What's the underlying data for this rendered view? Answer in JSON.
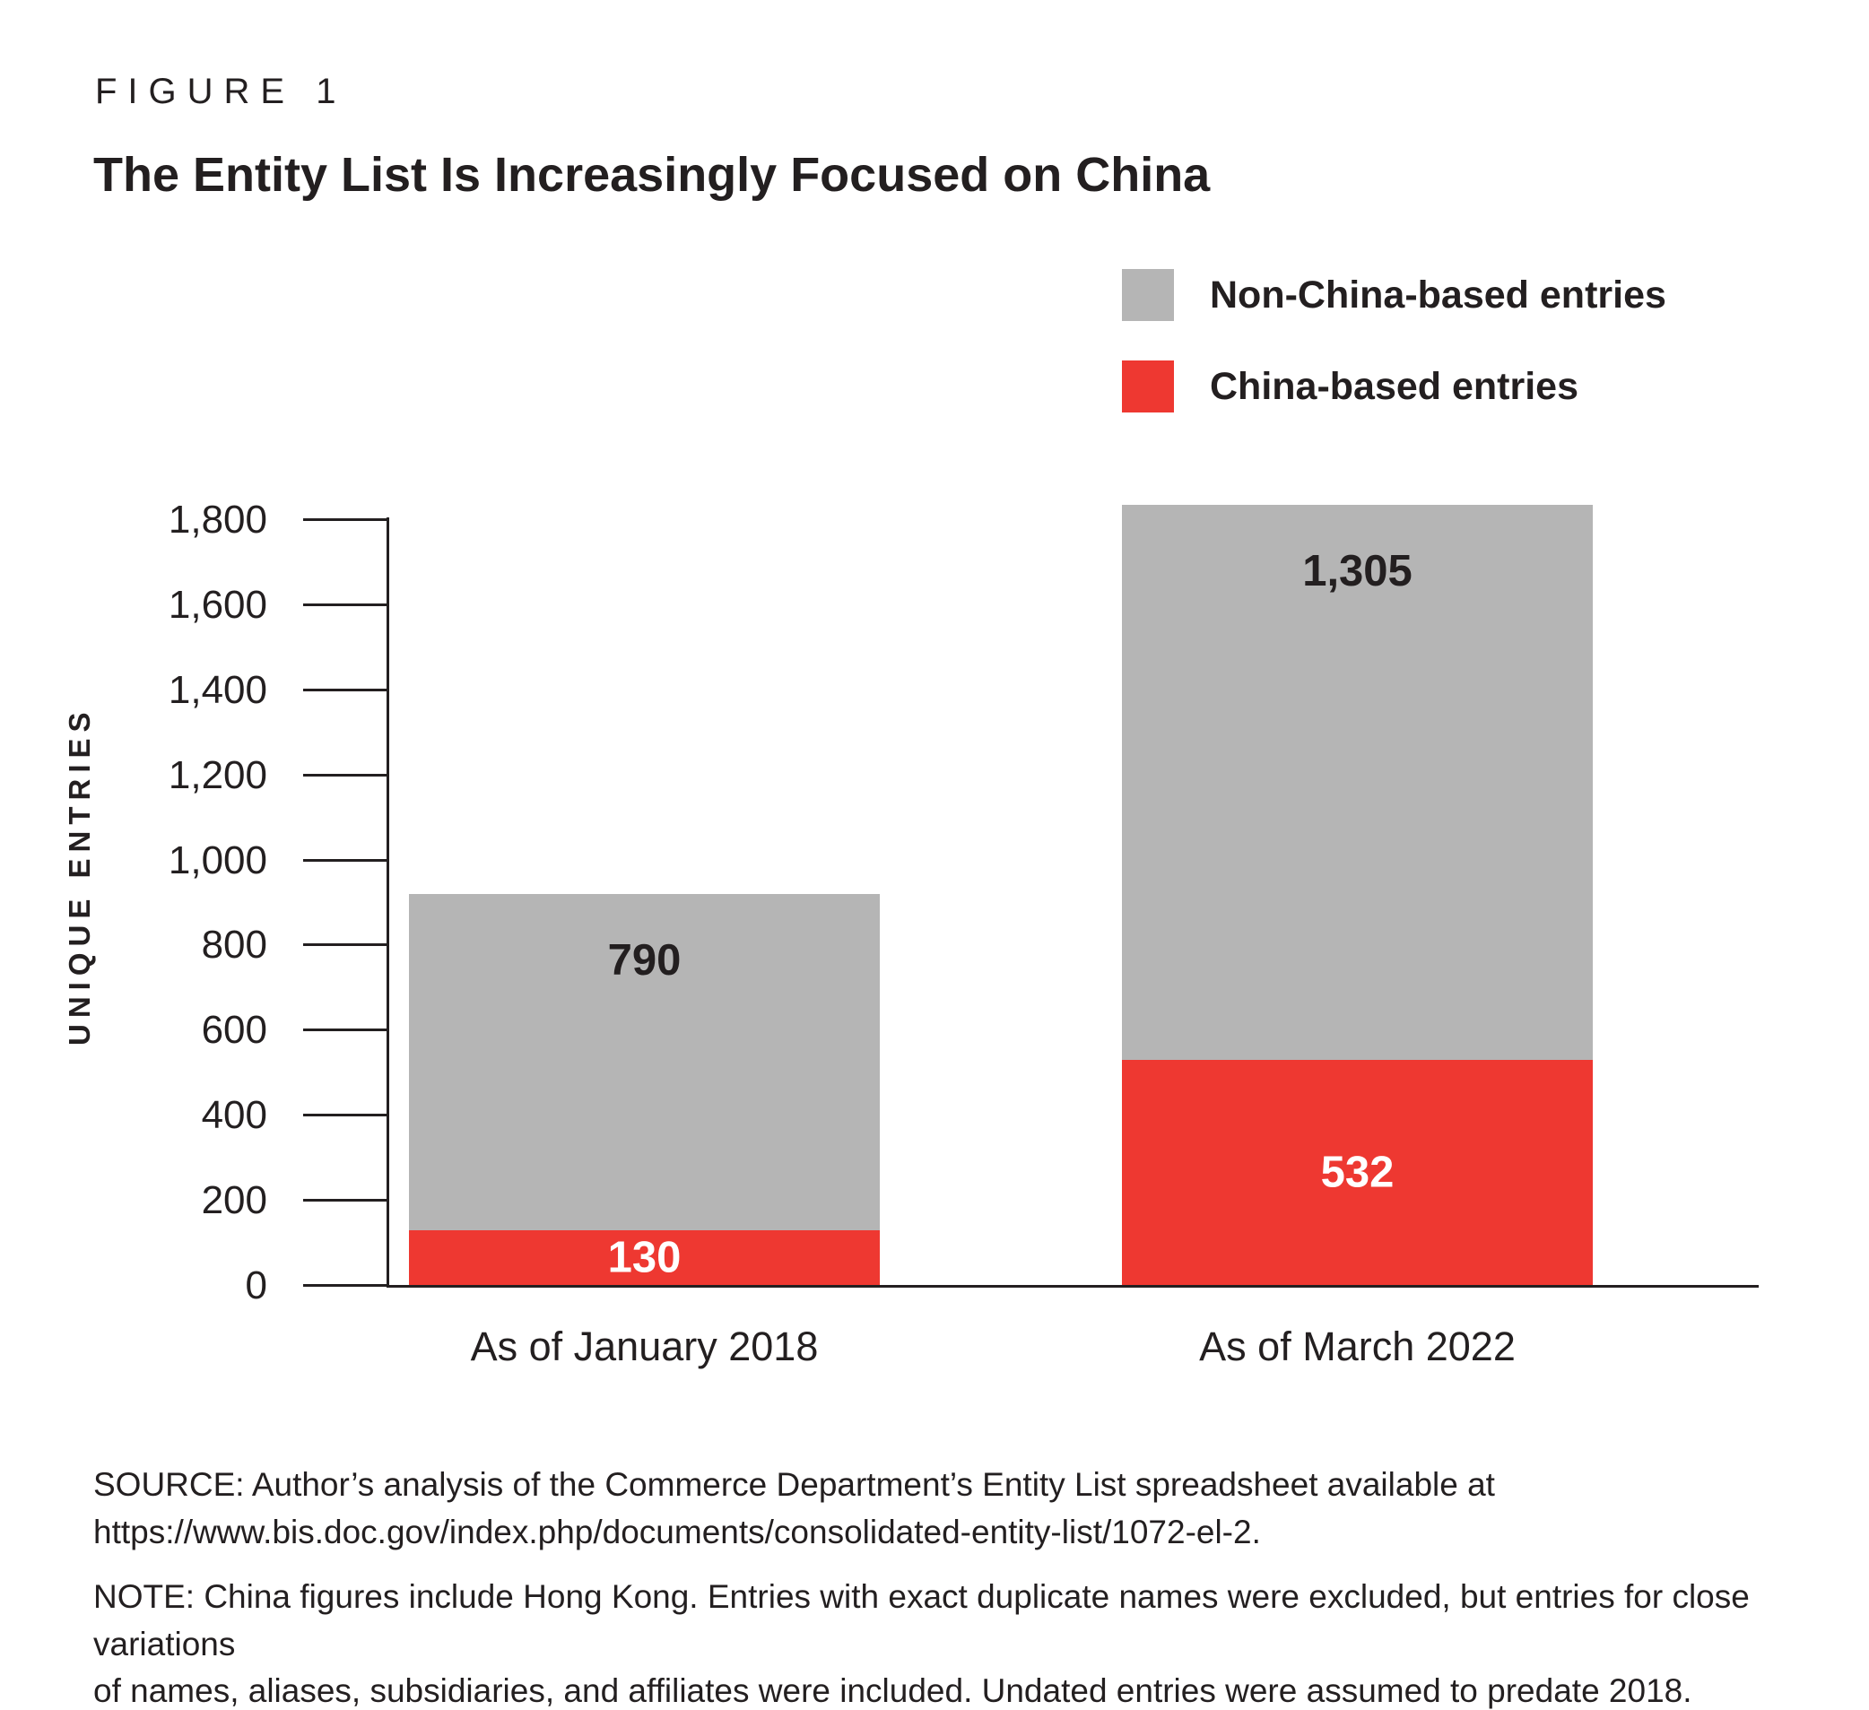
{
  "figure": {
    "eyebrow": "FIGURE 1",
    "title": "The Entity List Is Increasingly Focused on China"
  },
  "legend": {
    "items": [
      {
        "label": "Non-China-based entries",
        "color": "#b5b5b5"
      },
      {
        "label": "China-based entries",
        "color": "#ee3831"
      }
    ]
  },
  "chart_data": {
    "type": "bar",
    "stacked": true,
    "title": "The Entity List Is Increasingly Focused on China",
    "categories": [
      "As of January 2018",
      "As of March 2022"
    ],
    "series": [
      {
        "name": "China-based entries",
        "color": "#ee3831",
        "values": [
          130,
          532
        ],
        "value_labels": [
          "130",
          "532"
        ],
        "label_color": "#ffffff",
        "label_position": "center"
      },
      {
        "name": "Non-China-based entries",
        "color": "#b5b5b5",
        "values": [
          790,
          1305
        ],
        "value_labels": [
          "790",
          "1,305"
        ],
        "label_color": "#231f20",
        "label_position": "top"
      }
    ],
    "ylabel": "UNIQUE ENTRIES",
    "xlabel": "",
    "ylim": [
      0,
      1800
    ],
    "yticks": [
      {
        "value": 0,
        "label": "0"
      },
      {
        "value": 200,
        "label": "200"
      },
      {
        "value": 400,
        "label": "400"
      },
      {
        "value": 600,
        "label": "600"
      },
      {
        "value": 800,
        "label": "800"
      },
      {
        "value": 1000,
        "label": "1,000"
      },
      {
        "value": 1200,
        "label": "1,200"
      },
      {
        "value": 1400,
        "label": "1,400"
      },
      {
        "value": 1600,
        "label": "1,600"
      },
      {
        "value": 1800,
        "label": "1,800"
      }
    ],
    "legend_position": "top-right",
    "grid": false
  },
  "footer": {
    "source_lines": [
      "SOURCE: Author’s analysis of the Commerce Department’s Entity List spreadsheet available at",
      "https://www.bis.doc.gov/index.php/documents/consolidated-entity-list/1072-el-2."
    ],
    "note_lines": [
      "NOTE: China figures include Hong Kong. Entries with exact duplicate names were excluded, but entries for close variations",
      "of names, aliases, subsidiaries, and affiliates were included. Undated entries were assumed to predate 2018."
    ]
  }
}
